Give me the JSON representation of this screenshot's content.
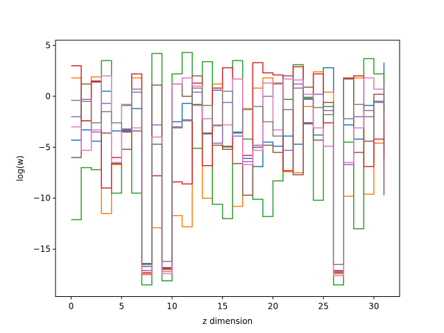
{
  "chart_data": {
    "type": "line",
    "step": "post",
    "title": "",
    "xlabel": "z dimension",
    "ylabel": "log(w)",
    "xlim": [
      -1.55,
      32.55
    ],
    "ylim": [
      -19.65,
      5.5
    ],
    "xticks": [
      0,
      5,
      10,
      15,
      20,
      25,
      30
    ],
    "yticks": [
      5,
      0,
      -5,
      -10,
      -15
    ],
    "ytick_labels": [
      "5",
      "0",
      "−5",
      "−10",
      "−15"
    ],
    "grid": false,
    "x": [
      0,
      1,
      2,
      3,
      4,
      5,
      6,
      7,
      8,
      9,
      10,
      11,
      12,
      13,
      14,
      15,
      16,
      17,
      18,
      19,
      20,
      21,
      22,
      23,
      24,
      25,
      26,
      27,
      28,
      29,
      30,
      31
    ],
    "series": [
      {
        "color": "#1f77b4",
        "values": [
          -4.3,
          -3.3,
          -4.4,
          0.5,
          -3.4,
          -3.3,
          -1.2,
          -16.4,
          -4.7,
          -16.9,
          -2.5,
          -0.7,
          -0.8,
          -3.6,
          0.6,
          -4.9,
          -3.6,
          -6.1,
          -6.9,
          -4.5,
          -4.9,
          -3.9,
          -4.7,
          -2.7,
          -3.8,
          2.8,
          -16.5,
          -2.8,
          -4.2,
          -0.9,
          -0.5,
          3.3
        ]
      },
      {
        "color": "#ff7f0e",
        "values": [
          1.8,
          -2.4,
          1.9,
          -11.5,
          -6.7,
          -0.8,
          1.8,
          -17.5,
          -12.9,
          -17.2,
          -11.7,
          -12.8,
          -0.9,
          -10.0,
          1.2,
          -5.0,
          -10.8,
          -1.2,
          0.8,
          1.8,
          1.2,
          -7.4,
          -7.5,
          -1.0,
          2.4,
          0.4,
          -17.4,
          -9.8,
          1.8,
          -9.6,
          -4.6,
          -2.4
        ]
      },
      {
        "color": "#2ca02c",
        "values": [
          -12.1,
          -7.0,
          -7.2,
          3.5,
          -9.5,
          -0.9,
          -9.5,
          -18.5,
          4.2,
          -18.1,
          2.2,
          4.3,
          -5.1,
          3.4,
          -10.6,
          -12.0,
          3.5,
          -4.2,
          -10.1,
          -11.8,
          -8.3,
          -0.3,
          3.1,
          -0.1,
          -10.2,
          -1.0,
          -18.5,
          -4.5,
          -13.0,
          3.7,
          2.2,
          -1.4
        ]
      },
      {
        "color": "#d62728",
        "values": [
          3.0,
          -2.4,
          1.5,
          -9.0,
          -6.0,
          -3.5,
          2.2,
          -17.3,
          -7.8,
          -16.9,
          -8.4,
          -8.6,
          1.3,
          -6.8,
          0.8,
          2.8,
          -6.6,
          -5.8,
          3.3,
          2.3,
          2.1,
          -7.3,
          2.9,
          -2.6,
          2.2,
          -2.6,
          -17.1,
          1.8,
          2.0,
          -6.9,
          -4.2,
          -6.0
        ]
      },
      {
        "color": "#9467bd",
        "values": [
          -2.0,
          -0.3,
          -3.5,
          -0.7,
          -6.5,
          -3.2,
          0.4,
          -17.1,
          -2.8,
          -17.0,
          -3.1,
          -2.3,
          0.4,
          -3.7,
          -4.6,
          -0.6,
          -3.9,
          -6.4,
          -4.8,
          0.0,
          1.3,
          -5.3,
          1.2,
          -0.2,
          0.2,
          -1.4,
          -17.2,
          -6.7,
          -2.0,
          -2.0,
          -0.5,
          -6.2
        ]
      },
      {
        "color": "#8c564b",
        "values": [
          -6.0,
          1.2,
          1.4,
          -3.6,
          -6.6,
          -5.2,
          -3.4,
          -16.7,
          1.1,
          -16.8,
          1.2,
          0.0,
          2.0,
          -3.6,
          -4.8,
          -5.2,
          -6.6,
          -9.7,
          -5.0,
          -4.8,
          -5.5,
          2.0,
          -7.7,
          0.9,
          -4.3,
          -0.6,
          -17.3,
          1.7,
          -5.5,
          -4.4,
          0.2,
          -9.7
        ]
      },
      {
        "color": "#e377c2",
        "values": [
          -3.0,
          -5.3,
          -3.3,
          2.0,
          -6.5,
          -0.8,
          -3.1,
          -17.4,
          -4.0,
          -17.4,
          1.2,
          1.8,
          1.0,
          -2.2,
          -2.8,
          -2.8,
          1.7,
          -6.7,
          -5.3,
          1.3,
          -3.3,
          1.7,
          1.6,
          0.2,
          -3.1,
          -4.9,
          -17.6,
          -6.5,
          -3.1,
          1.8,
          0.7,
          -0.3
        ]
      },
      {
        "color": "#7f7f7f",
        "values": [
          -0.4,
          -0.5,
          -2.6,
          -1.5,
          -2.6,
          -3.4,
          0.7,
          -16.5,
          -4.7,
          -16.2,
          -3.0,
          -2.4,
          0.8,
          -0.9,
          -2.9,
          0.5,
          -3.5,
          -1.3,
          -1.0,
          -2.5,
          -3.9,
          -1.3,
          0.8,
          -0.3,
          -1.1,
          -1.8,
          -16.5,
          -2.2,
          -0.8,
          -1.4,
          -0.6,
          1.3
        ]
      }
    ]
  }
}
